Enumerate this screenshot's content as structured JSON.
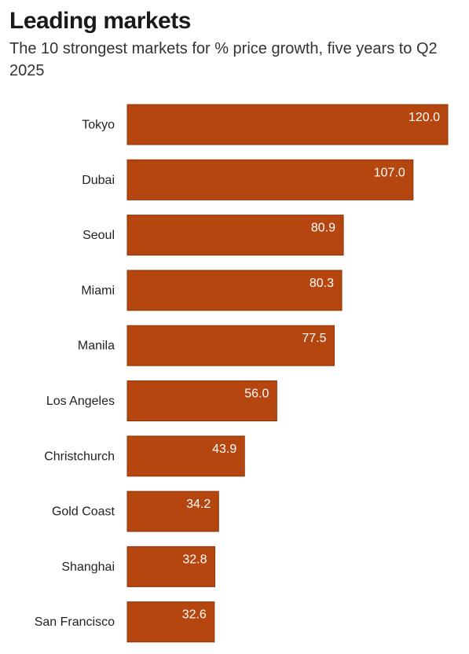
{
  "header": {
    "title": "Leading markets",
    "subtitle": "The 10 strongest markets for % price growth, five years to Q2 2025"
  },
  "colors": {
    "bar": "#b5460f",
    "bar_edge": "#8f3508"
  },
  "chart_data": {
    "type": "bar",
    "orientation": "horizontal",
    "title": "Leading markets",
    "subtitle": "The 10 strongest markets for % price growth, five years to Q2 2025",
    "categories": [
      "Tokyo",
      "Dubai",
      "Seoul",
      "Miami",
      "Manila",
      "Los Angeles",
      "Christchurch",
      "Gold Coast",
      "Shanghai",
      "San Francisco"
    ],
    "values": [
      120.0,
      107.0,
      80.9,
      80.3,
      77.5,
      56.0,
      43.9,
      34.2,
      32.8,
      32.6
    ],
    "value_labels": [
      "120.0",
      "107.0",
      "80.9",
      "80.3",
      "77.5",
      "56.0",
      "43.9",
      "34.2",
      "32.8",
      "32.6"
    ],
    "xlabel": "",
    "ylabel": "",
    "xlim": [
      0,
      120
    ],
    "grid": false,
    "legend": "none"
  }
}
